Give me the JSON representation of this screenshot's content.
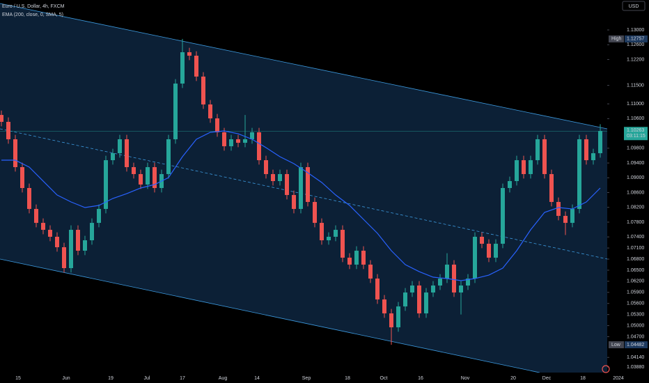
{
  "chart_data": {
    "type": "candlestick",
    "title": "Euro / U.S. Dollar, 4h, FXCM",
    "currency": "USD",
    "up_color": "#26a69a",
    "down_color": "#ef5350",
    "xlim": [
      -0.2,
      87
    ],
    "ylim": [
      1.0373,
      1.1381
    ],
    "ohlc": [
      [
        1.107,
        1.1082,
        1.10393,
        1.10513
      ],
      [
        1.10513,
        1.10633,
        1.09922,
        1.10042
      ],
      [
        1.10042,
        1.10162,
        1.09168,
        1.09288
      ],
      [
        1.09288,
        1.09408,
        1.08603,
        1.08723
      ],
      [
        1.08723,
        1.08843,
        1.08037,
        1.08157
      ],
      [
        1.08157,
        1.08277,
        1.0766,
        1.0778
      ],
      [
        1.0778,
        1.079,
        1.07472,
        1.07592
      ],
      [
        1.07592,
        1.07712,
        1.07284,
        1.07404
      ],
      [
        1.07404,
        1.07524,
        1.07001,
        1.07121
      ],
      [
        1.07121,
        1.07241,
        1.06436,
        1.06556
      ],
      [
        1.06556,
        1.07712,
        1.06436,
        1.07592
      ],
      [
        1.07592,
        1.07712,
        1.06907,
        1.07027
      ],
      [
        1.07027,
        1.07429,
        1.06907,
        1.07309
      ],
      [
        1.07309,
        1.079,
        1.07189,
        1.0778
      ],
      [
        1.0778,
        1.08277,
        1.0766,
        1.08157
      ],
      [
        1.08157,
        1.09596,
        1.08037,
        1.09476
      ],
      [
        1.09476,
        1.09785,
        1.09356,
        1.09665
      ],
      [
        1.09665,
        1.10162,
        1.09545,
        1.10042
      ],
      [
        1.10042,
        1.10162,
        1.09168,
        1.09288
      ],
      [
        1.09288,
        1.09408,
        1.0898,
        1.091
      ],
      [
        1.091,
        1.0922,
        1.08697,
        1.08817
      ],
      [
        1.08817,
        1.09408,
        1.08697,
        1.09288
      ],
      [
        1.09288,
        1.09408,
        1.08603,
        1.08723
      ],
      [
        1.08723,
        1.0922,
        1.08603,
        1.091
      ],
      [
        1.091,
        1.10162,
        1.0898,
        1.10042
      ],
      [
        1.10042,
        1.11669,
        1.09922,
        1.11549
      ],
      [
        1.11549,
        1.12757,
        1.11429,
        1.12397
      ],
      [
        1.12397,
        1.12517,
        1.12183,
        1.12303
      ],
      [
        1.12303,
        1.12423,
        1.11618,
        1.11738
      ],
      [
        1.11738,
        1.11858,
        1.10864,
        1.10984
      ],
      [
        1.10984,
        1.11104,
        1.10487,
        1.10607
      ],
      [
        1.10607,
        1.10727,
        1.1011,
        1.1023
      ],
      [
        1.1023,
        1.1035,
        1.09733,
        1.09853
      ],
      [
        1.09853,
        1.10162,
        1.09733,
        1.10042
      ],
      [
        1.10042,
        1.10162,
        1.09827,
        1.09947
      ],
      [
        1.09947,
        1.107,
        1.09827,
        1.10042
      ],
      [
        1.10042,
        1.1035,
        1.09922,
        1.1023
      ],
      [
        1.1023,
        1.1035,
        1.09356,
        1.09476
      ],
      [
        1.09476,
        1.09596,
        1.0898,
        1.091
      ],
      [
        1.091,
        1.0922,
        1.08791,
        1.08911
      ],
      [
        1.08911,
        1.0922,
        1.08791,
        1.091
      ],
      [
        1.091,
        1.0922,
        1.08414,
        1.08534
      ],
      [
        1.08534,
        1.08654,
        1.08037,
        1.08157
      ],
      [
        1.08157,
        1.09408,
        1.08037,
        1.09288
      ],
      [
        1.09288,
        1.09408,
        1.08226,
        1.08346
      ],
      [
        1.08346,
        1.08466,
        1.0766,
        1.0778
      ],
      [
        1.0778,
        1.079,
        1.07189,
        1.07309
      ],
      [
        1.07309,
        1.07524,
        1.07189,
        1.07404
      ],
      [
        1.07404,
        1.07712,
        1.07284,
        1.07592
      ],
      [
        1.07592,
        1.07712,
        1.06718,
        1.06838
      ],
      [
        1.06838,
        1.06958,
        1.0653,
        1.0665
      ],
      [
        1.0665,
        1.07147,
        1.0653,
        1.07027
      ],
      [
        1.07027,
        1.07147,
        1.0653,
        1.0665
      ],
      [
        1.0665,
        1.0677,
        1.06153,
        1.06273
      ],
      [
        1.06273,
        1.06393,
        1.05588,
        1.05708
      ],
      [
        1.05708,
        1.05828,
        1.05211,
        1.05331
      ],
      [
        1.05331,
        1.05451,
        1.04482,
        1.04954
      ],
      [
        1.04954,
        1.05639,
        1.04834,
        1.05519
      ],
      [
        1.05519,
        1.06016,
        1.05399,
        1.05896
      ],
      [
        1.05896,
        1.06205,
        1.05776,
        1.06085
      ],
      [
        1.06085,
        1.06205,
        1.05211,
        1.05331
      ],
      [
        1.05331,
        1.06016,
        1.05211,
        1.05896
      ],
      [
        1.05896,
        1.06205,
        1.05776,
        1.06085
      ],
      [
        1.06085,
        1.06393,
        1.05965,
        1.06273
      ],
      [
        1.06273,
        1.06958,
        1.06153,
        1.0665
      ],
      [
        1.0665,
        1.0677,
        1.05776,
        1.05896
      ],
      [
        1.05896,
        1.06205,
        1.053,
        1.06085
      ],
      [
        1.06085,
        1.06393,
        1.05965,
        1.06273
      ],
      [
        1.06273,
        1.07524,
        1.06153,
        1.07404
      ],
      [
        1.07404,
        1.07524,
        1.07095,
        1.07215
      ],
      [
        1.07215,
        1.07335,
        1.06718,
        1.06838
      ],
      [
        1.06838,
        1.07335,
        1.06718,
        1.07215
      ],
      [
        1.07215,
        1.08843,
        1.07095,
        1.08723
      ],
      [
        1.08723,
        1.09031,
        1.08603,
        1.08911
      ],
      [
        1.08911,
        1.09596,
        1.08791,
        1.09476
      ],
      [
        1.09476,
        1.09596,
        1.0898,
        1.091
      ],
      [
        1.091,
        1.09596,
        1.0898,
        1.09476
      ],
      [
        1.09476,
        1.10162,
        1.09356,
        1.10042
      ],
      [
        1.10042,
        1.10162,
        1.0898,
        1.091
      ],
      [
        1.091,
        1.0922,
        1.08226,
        1.08346
      ],
      [
        1.08346,
        1.08466,
        1.07849,
        1.07969
      ],
      [
        1.07969,
        1.08089,
        1.0745,
        1.0778
      ],
      [
        1.0778,
        1.08277,
        1.0766,
        1.08157
      ],
      [
        1.08157,
        1.10162,
        1.08037,
        1.10042
      ],
      [
        1.10042,
        1.10162,
        1.09356,
        1.09476
      ],
      [
        1.09476,
        1.09785,
        1.09356,
        1.09665
      ],
      [
        1.09665,
        1.1045,
        1.09545,
        1.10263
      ]
    ],
    "series": [
      {
        "name": "EMA (200, close, 0, SMA, 5)",
        "color": "#2962ff",
        "x": [
          0,
          2,
          4,
          6,
          8,
          10,
          12,
          14,
          16,
          18,
          20,
          22,
          24,
          26,
          28,
          30,
          32,
          34,
          36,
          38,
          40,
          42,
          44,
          46,
          48,
          50,
          52,
          54,
          56,
          58,
          60,
          62,
          64,
          66,
          68,
          70,
          72,
          74,
          76,
          78,
          80,
          82,
          84,
          86
        ],
        "values": [
          1.09476,
          1.09476,
          1.09288,
          1.08911,
          1.08534,
          1.08346,
          1.08195,
          1.08252,
          1.0844,
          1.08572,
          1.08723,
          1.08817,
          1.09005,
          1.09571,
          1.10042,
          1.1023,
          1.10268,
          1.10192,
          1.10042,
          1.09816,
          1.09571,
          1.09382,
          1.09137,
          1.08874,
          1.08534,
          1.08252,
          1.07875,
          1.07498,
          1.07027,
          1.0665,
          1.06461,
          1.06311,
          1.06273,
          1.06217,
          1.06273,
          1.06367,
          1.06556,
          1.07027,
          1.07592,
          1.08063,
          1.08195,
          1.08157,
          1.08346,
          1.08723
        ]
      }
    ],
    "channel": {
      "color": "#3d9be0",
      "fill": "#0c2036",
      "upper": {
        "x": [
          -0.2,
          87
        ],
        "y": [
          1.13716,
          1.10324
        ]
      },
      "middle": {
        "x": [
          -0.2,
          87
        ],
        "y": [
          1.10324,
          1.06801
        ]
      },
      "lower": {
        "x": [
          -0.2,
          77.3
        ],
        "y": [
          1.06801,
          1.03729
        ]
      }
    },
    "high": {
      "label": "High",
      "value": 1.12757,
      "value_label": "1.12757"
    },
    "low": {
      "label": "Low",
      "value": 1.04482,
      "value_label": "1.04482"
    },
    "last": {
      "value": 1.10263,
      "value_label": "1.10263",
      "countdown": "03:11:15"
    },
    "yticks": [
      {
        "value": 1.13,
        "label": "1.13000"
      },
      {
        "value": 1.126,
        "label": "1.12600"
      },
      {
        "value": 1.122,
        "label": "1.12200"
      },
      {
        "value": 1.115,
        "label": "1.11500"
      },
      {
        "value": 1.11,
        "label": "1.11000"
      },
      {
        "value": 1.106,
        "label": "1.10600"
      },
      {
        "value": 1.098,
        "label": "1.09800"
      },
      {
        "value": 1.094,
        "label": "1.09400"
      },
      {
        "value": 1.09,
        "label": "1.09000"
      },
      {
        "value": 1.086,
        "label": "1.08600"
      },
      {
        "value": 1.082,
        "label": "1.08200"
      },
      {
        "value": 1.078,
        "label": "1.07800"
      },
      {
        "value": 1.074,
        "label": "1.07400"
      },
      {
        "value": 1.071,
        "label": "1.07100"
      },
      {
        "value": 1.068,
        "label": "1.06800"
      },
      {
        "value": 1.065,
        "label": "1.06500"
      },
      {
        "value": 1.062,
        "label": "1.06200"
      },
      {
        "value": 1.059,
        "label": "1.05900"
      },
      {
        "value": 1.056,
        "label": "1.05600"
      },
      {
        "value": 1.053,
        "label": "1.05300"
      },
      {
        "value": 1.05,
        "label": "1.05000"
      },
      {
        "value": 1.047,
        "label": "1.04700"
      },
      {
        "value": 1.0414,
        "label": "1.04140"
      },
      {
        "value": 1.0388,
        "label": "1.03880"
      }
    ],
    "xticks": [
      {
        "value": 2.4,
        "label": "15"
      },
      {
        "value": 9.3,
        "label": "Jun"
      },
      {
        "value": 15.7,
        "label": "19"
      },
      {
        "value": 20.9,
        "label": "Jul"
      },
      {
        "value": 26,
        "label": "17"
      },
      {
        "value": 31.8,
        "label": "Aug"
      },
      {
        "value": 36.7,
        "label": "14"
      },
      {
        "value": 43.8,
        "label": "Sep"
      },
      {
        "value": 49.7,
        "label": "18"
      },
      {
        "value": 54.9,
        "label": "Oct"
      },
      {
        "value": 60.2,
        "label": "16"
      },
      {
        "value": 66.6,
        "label": "Nov"
      },
      {
        "value": 73.5,
        "label": "20"
      },
      {
        "value": 78.3,
        "label": "Dec"
      },
      {
        "value": 83.5,
        "label": "18"
      },
      {
        "value": 88.6,
        "label": "2024"
      }
    ]
  }
}
